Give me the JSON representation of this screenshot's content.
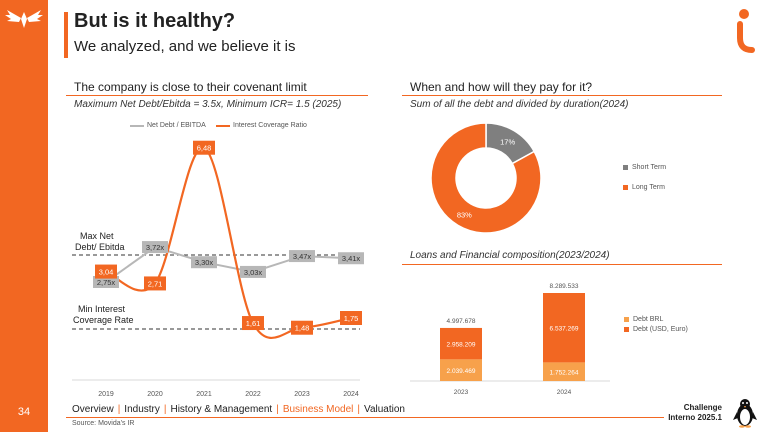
{
  "slide": {
    "page_number": "34",
    "title": "But is it healthy?",
    "subtitle": "We analyzed, and we believe it is"
  },
  "left_section": {
    "heading": "The company is close to their covenant limit",
    "subheading": "Maximum Net Debt/Ebitda = 3.5x, Minimum ICR= 1.5 (2025)",
    "legend_net_debt": "Net Debt / EBITDA",
    "legend_icr": "Interest Coverage Ratio",
    "annotation_max": [
      "Max Net",
      "Debt/ Ebitda"
    ],
    "annotation_min": [
      "Min Interest",
      "Coverage Rate"
    ]
  },
  "right_top": {
    "heading": "When and how will they pay for it?",
    "subheading": "Sum of all the debt and divided by duration(2024)",
    "legend_short": "Short Term",
    "legend_long": "Long Term"
  },
  "right_bottom": {
    "subheading": "Loans and Financial composition(2023/2024)",
    "legend_brl": "Debt BRL",
    "legend_usd": "Debt (USD, Euro)"
  },
  "nav": {
    "items": [
      "Overview",
      "Industry",
      "History & Management",
      "Business Model",
      "Valuation"
    ],
    "active_index": 3
  },
  "footer": {
    "source": "Source: Movida's IR",
    "challenge_line1": "Challenge",
    "challenge_line2": "Interno 2025.1"
  },
  "colors": {
    "accent": "#f26722",
    "gray": "#b7b7b7",
    "dark_gray": "#7f7f7f",
    "light_orange": "#f7a14b"
  },
  "chart_data": [
    {
      "type": "line",
      "title": "The company is close to their covenant limit",
      "categories": [
        "2019",
        "2020",
        "2021",
        "2022",
        "2023",
        "2024"
      ],
      "series": [
        {
          "name": "Net Debt / EBITDA",
          "values": [
            2.75,
            3.72,
            3.3,
            3.03,
            3.47,
            3.41
          ],
          "labels": [
            "2,75x",
            "3,72x",
            "3,30x",
            "3,03x",
            "3,47x",
            "3,41x"
          ]
        },
        {
          "name": "Interest Coverage Ratio",
          "values": [
            3.04,
            2.71,
            6.48,
            1.61,
            1.48,
            1.75
          ],
          "labels": [
            "3,04",
            "2,71",
            "6,48",
            "1,61",
            "1,48",
            "1,75"
          ]
        }
      ],
      "reference_lines": [
        {
          "name": "Max Net Debt/ Ebitda",
          "value": 3.5
        },
        {
          "name": "Min Interest Coverage Rate",
          "value": 1.5
        }
      ],
      "ylim": [
        1.0,
        7.0
      ]
    },
    {
      "type": "pie",
      "title": "Sum of all the debt and divided by duration(2024)",
      "categories": [
        "Short Term",
        "Long Term"
      ],
      "values": [
        17,
        83
      ],
      "labels": [
        "17%",
        "83%"
      ]
    },
    {
      "type": "bar",
      "title": "Loans and Financial composition(2023/2024)",
      "categories": [
        "2023",
        "2024"
      ],
      "series": [
        {
          "name": "Debt BRL",
          "values": [
            2039469,
            1752264
          ],
          "labels": [
            "2.039.469",
            "1.752.264"
          ]
        },
        {
          "name": "Debt (USD, Euro)",
          "values": [
            2958209,
            6537269
          ],
          "labels": [
            "2.958.209",
            "6.537.269"
          ]
        }
      ],
      "totals": [
        "4.997.678",
        "8.289.533"
      ],
      "total_values": [
        4997678,
        8289533
      ]
    }
  ]
}
